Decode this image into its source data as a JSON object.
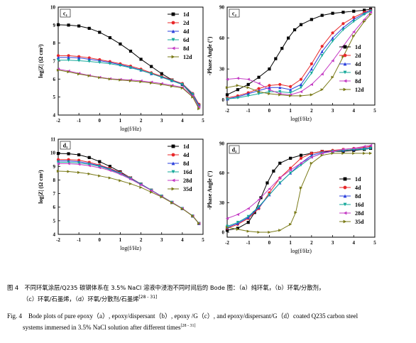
{
  "panels": [
    {
      "id": "c1",
      "label": "c₁",
      "kind": "impedance",
      "ylabel": "log|Z| (Ω cm²)",
      "xlabel": "log(f/Hz)",
      "xlim": [
        -2,
        5
      ],
      "ylim": [
        4,
        10
      ],
      "xticks": [
        -2,
        -1,
        0,
        1,
        2,
        3,
        4,
        5
      ],
      "yticks": [
        4,
        5,
        6,
        7,
        8,
        9,
        10
      ],
      "legend": "top-right",
      "series": [
        {
          "name": "1d",
          "color": "#000000",
          "marker": "square",
          "x": [
            -2,
            -1.5,
            -1,
            -0.5,
            0,
            0.5,
            1,
            1.5,
            2,
            2.5,
            3,
            3.5,
            4,
            4.5,
            4.8
          ],
          "y": [
            9.02,
            9.0,
            8.95,
            8.82,
            8.6,
            8.3,
            7.95,
            7.55,
            7.1,
            6.7,
            6.3,
            5.95,
            5.7,
            5.1,
            4.55
          ]
        },
        {
          "name": "2d",
          "color": "#e8282a",
          "marker": "circle",
          "x": [
            -2,
            -1.5,
            -1,
            -0.5,
            0,
            0.5,
            1,
            1.5,
            2,
            2.5,
            3,
            3.5,
            4,
            4.5,
            4.8
          ],
          "y": [
            7.3,
            7.3,
            7.25,
            7.18,
            7.08,
            6.97,
            6.85,
            6.72,
            6.55,
            6.35,
            6.15,
            5.95,
            5.75,
            5.2,
            4.6
          ]
        },
        {
          "name": "4d",
          "color": "#2a3fdc",
          "marker": "triangle-up",
          "x": [
            -2,
            -1.5,
            -1,
            -0.5,
            0,
            0.5,
            1,
            1.5,
            2,
            2.5,
            3,
            3.5,
            4,
            4.5,
            4.8
          ],
          "y": [
            7.2,
            7.2,
            7.18,
            7.1,
            7.02,
            6.92,
            6.8,
            6.66,
            6.5,
            6.3,
            6.12,
            5.92,
            5.72,
            5.18,
            4.55
          ]
        },
        {
          "name": "6d",
          "color": "#14a89a",
          "marker": "triangle-down",
          "x": [
            -2,
            -1.5,
            -1,
            -0.5,
            0,
            0.5,
            1,
            1.5,
            2,
            2.5,
            3,
            3.5,
            4,
            4.5,
            4.8
          ],
          "y": [
            7.05,
            7.05,
            7.02,
            6.98,
            6.92,
            6.85,
            6.76,
            6.63,
            6.48,
            6.3,
            6.1,
            5.9,
            5.7,
            5.15,
            4.5
          ]
        },
        {
          "name": "8d",
          "color": "#c43bc4",
          "marker": "triangle-left",
          "x": [
            -2,
            -1.5,
            -1,
            -0.5,
            0,
            0.5,
            1,
            1.5,
            2,
            2.5,
            3,
            3.5,
            4,
            4.5,
            4.8
          ],
          "y": [
            6.55,
            6.45,
            6.32,
            6.2,
            6.1,
            6.02,
            5.98,
            5.95,
            5.9,
            5.83,
            5.75,
            5.65,
            5.55,
            5.05,
            4.45
          ]
        },
        {
          "name": "12d",
          "color": "#7a7a18",
          "marker": "triangle-right",
          "x": [
            -2,
            -1.5,
            -1,
            -0.5,
            0,
            0.5,
            1,
            1.5,
            2,
            2.5,
            3,
            3.5,
            4,
            4.5,
            4.8
          ],
          "y": [
            6.5,
            6.4,
            6.28,
            6.18,
            6.08,
            6.0,
            5.95,
            5.9,
            5.85,
            5.78,
            5.7,
            5.6,
            5.5,
            5.0,
            4.35
          ]
        }
      ]
    },
    {
      "id": "c2",
      "label": "c₂",
      "kind": "phase",
      "ylabel": "-Phase Angle (°)",
      "xlabel": "log(f/Hz)",
      "xlim": [
        -2,
        5
      ],
      "ylim": [
        -5,
        90
      ],
      "xticks": [
        -2,
        -1,
        0,
        1,
        2,
        3,
        4,
        5
      ],
      "yticks": [
        0,
        30,
        60,
        90
      ],
      "legend": "bottom-right",
      "series": [
        {
          "name": "1d",
          "color": "#000000",
          "marker": "square",
          "x": [
            -2,
            -1.5,
            -1,
            -0.5,
            0,
            0.3,
            0.6,
            0.9,
            1.2,
            1.5,
            2,
            2.5,
            3,
            3.5,
            4,
            4.5,
            4.8
          ],
          "y": [
            5,
            10,
            15,
            22,
            30,
            40,
            50,
            60,
            68,
            73,
            78,
            82,
            84,
            85,
            86,
            87,
            88
          ]
        },
        {
          "name": "2d",
          "color": "#e8282a",
          "marker": "circle",
          "x": [
            -2,
            -1.5,
            -1,
            -0.5,
            0,
            0.5,
            1,
            1.5,
            2,
            2.5,
            3,
            3.5,
            4,
            4.5,
            4.8
          ],
          "y": [
            2,
            4,
            7,
            11,
            14,
            15,
            13,
            20,
            35,
            52,
            65,
            74,
            80,
            85,
            87
          ]
        },
        {
          "name": "4d",
          "color": "#2a3fdc",
          "marker": "triangle-up",
          "x": [
            -2,
            -1.5,
            -1,
            -0.5,
            0,
            0.5,
            1,
            1.5,
            2,
            2.5,
            3,
            3.5,
            4,
            4.5,
            4.8
          ],
          "y": [
            1,
            3,
            6,
            9,
            12,
            12,
            10,
            15,
            30,
            47,
            60,
            70,
            78,
            84,
            87
          ]
        },
        {
          "name": "6d",
          "color": "#14a89a",
          "marker": "triangle-down",
          "x": [
            -2,
            -1.5,
            -1,
            -0.5,
            0,
            0.5,
            1,
            1.5,
            2,
            2.5,
            3,
            3.5,
            4,
            4.5,
            4.8
          ],
          "y": [
            1,
            2,
            4,
            6,
            8,
            8,
            7,
            12,
            26,
            43,
            57,
            68,
            76,
            83,
            86
          ]
        },
        {
          "name": "8d",
          "color": "#c43bc4",
          "marker": "triangle-left",
          "x": [
            -2,
            -1.5,
            -1,
            -0.5,
            0,
            0.5,
            1,
            1.5,
            2,
            2.5,
            3,
            3.5,
            4,
            4.5,
            4.8
          ],
          "y": [
            20,
            21,
            20,
            16,
            10,
            6,
            5,
            8,
            15,
            25,
            38,
            52,
            66,
            78,
            85
          ]
        },
        {
          "name": "12d",
          "color": "#7a7a18",
          "marker": "triangle-right",
          "x": [
            -2,
            -1.5,
            -1,
            -0.5,
            0,
            0.5,
            1,
            1.5,
            2,
            2.5,
            3,
            3.5,
            4,
            4.5,
            4.8
          ],
          "y": [
            12,
            14,
            12,
            8,
            6,
            5,
            4,
            4,
            5,
            10,
            22,
            42,
            62,
            76,
            83
          ]
        }
      ]
    },
    {
      "id": "d1",
      "label": "d₁",
      "kind": "impedance",
      "ylabel": "log|Z| (Ω cm²)",
      "xlabel": "log(f/Hz)",
      "xlim": [
        -2,
        5
      ],
      "ylim": [
        4,
        11
      ],
      "xticks": [
        -2,
        -1,
        0,
        1,
        2,
        3,
        4,
        5
      ],
      "yticks": [
        4,
        5,
        6,
        7,
        8,
        9,
        10,
        11
      ],
      "legend": "top-right",
      "series": [
        {
          "name": "1d",
          "color": "#000000",
          "marker": "square",
          "x": [
            -2,
            -1.5,
            -1,
            -0.5,
            0,
            0.5,
            1,
            1.5,
            2,
            2.5,
            3,
            3.5,
            4,
            4.5,
            4.8
          ],
          "y": [
            9.95,
            9.93,
            9.85,
            9.65,
            9.35,
            9.0,
            8.6,
            8.15,
            7.7,
            7.25,
            6.8,
            6.35,
            5.9,
            5.35,
            4.8
          ]
        },
        {
          "name": "4d",
          "color": "#e8282a",
          "marker": "circle",
          "x": [
            -2,
            -1.5,
            -1,
            -0.5,
            0,
            0.5,
            1,
            1.5,
            2,
            2.5,
            3,
            3.5,
            4,
            4.5,
            4.8
          ],
          "y": [
            9.5,
            9.5,
            9.45,
            9.3,
            9.1,
            8.85,
            8.55,
            8.15,
            7.7,
            7.25,
            6.8,
            6.35,
            5.9,
            5.35,
            4.8
          ]
        },
        {
          "name": "8d",
          "color": "#2a3fdc",
          "marker": "triangle-up",
          "x": [
            -2,
            -1.5,
            -1,
            -0.5,
            0,
            0.5,
            1,
            1.5,
            2,
            2.5,
            3,
            3.5,
            4,
            4.5,
            4.8
          ],
          "y": [
            9.4,
            9.4,
            9.35,
            9.22,
            9.05,
            8.8,
            8.5,
            8.12,
            7.7,
            7.25,
            6.8,
            6.35,
            5.9,
            5.35,
            4.8
          ]
        },
        {
          "name": "16d",
          "color": "#14a89a",
          "marker": "triangle-down",
          "x": [
            -2,
            -1.5,
            -1,
            -0.5,
            0,
            0.5,
            1,
            1.5,
            2,
            2.5,
            3,
            3.5,
            4,
            4.5,
            4.8
          ],
          "y": [
            9.3,
            9.3,
            9.25,
            9.15,
            9.0,
            8.75,
            8.48,
            8.1,
            7.68,
            7.24,
            6.8,
            6.35,
            5.9,
            5.35,
            4.8
          ]
        },
        {
          "name": "28d",
          "color": "#c43bc4",
          "marker": "triangle-left",
          "x": [
            -2,
            -1.5,
            -1,
            -0.5,
            0,
            0.5,
            1,
            1.5,
            2,
            2.5,
            3,
            3.5,
            4,
            4.5,
            4.8
          ],
          "y": [
            9.2,
            9.2,
            9.15,
            9.05,
            8.9,
            8.7,
            8.42,
            8.06,
            7.65,
            7.22,
            6.78,
            6.34,
            5.9,
            5.35,
            4.8
          ]
        },
        {
          "name": "35d",
          "color": "#7a7a18",
          "marker": "triangle-right",
          "x": [
            -2,
            -1.5,
            -1,
            -0.5,
            0,
            0.5,
            1,
            1.5,
            2,
            2.5,
            3,
            3.5,
            4,
            4.5,
            4.8
          ],
          "y": [
            8.65,
            8.62,
            8.55,
            8.45,
            8.3,
            8.15,
            7.95,
            7.72,
            7.45,
            7.1,
            6.75,
            6.32,
            5.88,
            5.35,
            4.8
          ]
        }
      ]
    },
    {
      "id": "d2",
      "label": "d₂",
      "kind": "phase",
      "ylabel": "-Phase Angle (°)",
      "xlabel": "log(f/Hz)",
      "xlim": [
        -2,
        5
      ],
      "ylim": [
        -5,
        90
      ],
      "xticks": [
        -2,
        -1,
        0,
        1,
        2,
        3,
        4,
        5
      ],
      "yticks": [
        0,
        30,
        60,
        90
      ],
      "legend": "bottom-right",
      "series": [
        {
          "name": "1d",
          "color": "#000000",
          "marker": "square",
          "x": [
            -2,
            -1.5,
            -1,
            -0.7,
            -0.4,
            -0.1,
            0.2,
            0.5,
            1,
            1.5,
            2,
            2.5,
            3,
            3.5,
            4,
            4.5,
            4.8
          ],
          "y": [
            2,
            4,
            10,
            20,
            35,
            50,
            62,
            70,
            75,
            78,
            80,
            82,
            82,
            82,
            83,
            84,
            85
          ]
        },
        {
          "name": "4d",
          "color": "#e8282a",
          "marker": "circle",
          "x": [
            -2,
            -1.5,
            -1,
            -0.5,
            0,
            0.5,
            1,
            1.5,
            2,
            2.5,
            3,
            3.5,
            4,
            4.5,
            4.8
          ],
          "y": [
            4,
            8,
            14,
            24,
            40,
            55,
            65,
            75,
            80,
            82,
            83,
            84,
            85,
            86,
            87
          ]
        },
        {
          "name": "8d",
          "color": "#2a3fdc",
          "marker": "triangle-up",
          "x": [
            -2,
            -1.5,
            -1,
            -0.5,
            0,
            0.5,
            1,
            1.5,
            2,
            2.5,
            3,
            3.5,
            4,
            4.5,
            4.8
          ],
          "y": [
            5,
            9,
            15,
            25,
            38,
            50,
            60,
            70,
            78,
            81,
            82,
            83,
            84,
            85,
            86
          ]
        },
        {
          "name": "16d",
          "color": "#14a89a",
          "marker": "triangle-down",
          "x": [
            -2,
            -1.5,
            -1,
            -0.5,
            0,
            0.5,
            1,
            1.5,
            2,
            2.5,
            3,
            3.5,
            4,
            4.5,
            4.8
          ],
          "y": [
            6,
            10,
            16,
            26,
            38,
            50,
            60,
            68,
            76,
            80,
            82,
            83,
            84,
            84,
            85
          ]
        },
        {
          "name": "28d",
          "color": "#c43bc4",
          "marker": "triangle-left",
          "x": [
            -2,
            -1.5,
            -1,
            -0.5,
            0,
            0.5,
            1,
            1.5,
            2,
            2.5,
            3,
            3.5,
            4,
            4.5,
            4.8
          ],
          "y": [
            14,
            18,
            24,
            33,
            44,
            55,
            63,
            70,
            76,
            80,
            82,
            84,
            85,
            87,
            88
          ]
        },
        {
          "name": "35d",
          "color": "#7a7a18",
          "marker": "triangle-right",
          "x": [
            -2,
            -1.5,
            -1,
            -0.5,
            0,
            0.5,
            1,
            1.25,
            1.5,
            2,
            2.5,
            3,
            3.5,
            4,
            4.5,
            4.8
          ],
          "y": [
            5,
            3,
            1,
            0,
            0,
            2,
            8,
            20,
            45,
            70,
            78,
            80,
            80,
            80,
            80,
            80
          ]
        }
      ]
    }
  ],
  "caption": {
    "cn_line1": "图 4　不同环氧涂层/Q235 碳钢体系在 3.5% NaCl 溶液中浸泡不同时间后的 Bode 图：（a）纯环氧，（b）环氧/分散剂，",
    "cn_line2": "（c）环氧/石墨烯，（d）环氧/分散剂/石墨烯",
    "cn_ref": "[28 - 31]",
    "en_line1": "Fig. 4　Bode plots of pure epoxy（a）, epoxy/dispersant（b）, epoxy /G（c）, and epoxy/dispersant/G（d）coated Q235 carbon steel",
    "en_line2": "systems immersed in 3.5% NaCl solution after different times",
    "en_ref": "[28 - 31]"
  }
}
